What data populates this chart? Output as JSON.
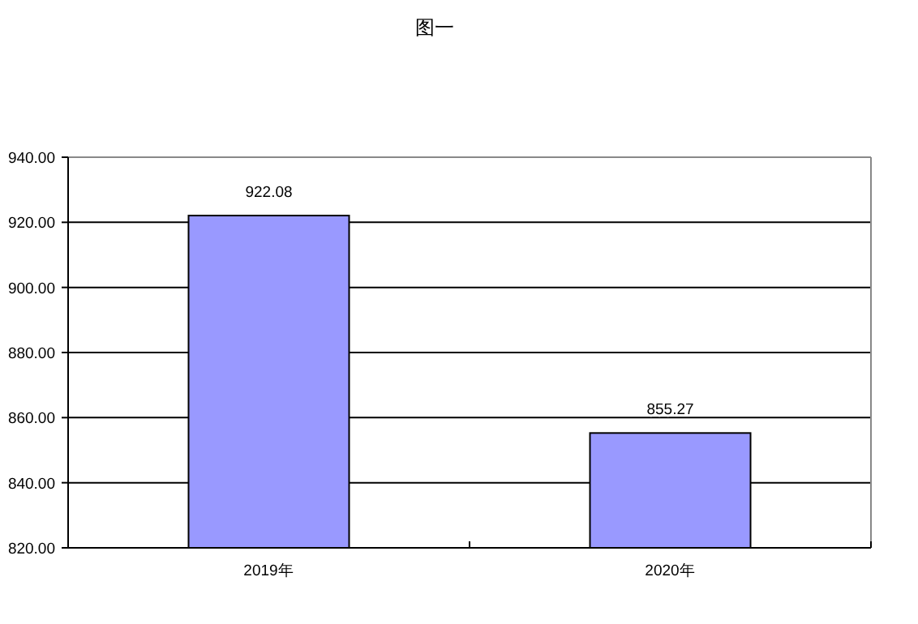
{
  "chart_data": {
    "type": "bar",
    "title": "图一",
    "categories": [
      "2019年",
      "2020年"
    ],
    "values": [
      922.08,
      855.27
    ],
    "color": "#9999ff",
    "ylim": [
      820,
      940
    ],
    "yticks": [
      {
        "value": 820,
        "label": "820.00"
      },
      {
        "value": 840,
        "label": "840.00"
      },
      {
        "value": 860,
        "label": "860.00"
      },
      {
        "value": 880,
        "label": "880.00"
      },
      {
        "value": 900,
        "label": "900.00"
      },
      {
        "value": 920,
        "label": "920.00"
      },
      {
        "value": 940,
        "label": "940.00"
      }
    ],
    "grid": "y",
    "data_labels": true
  }
}
